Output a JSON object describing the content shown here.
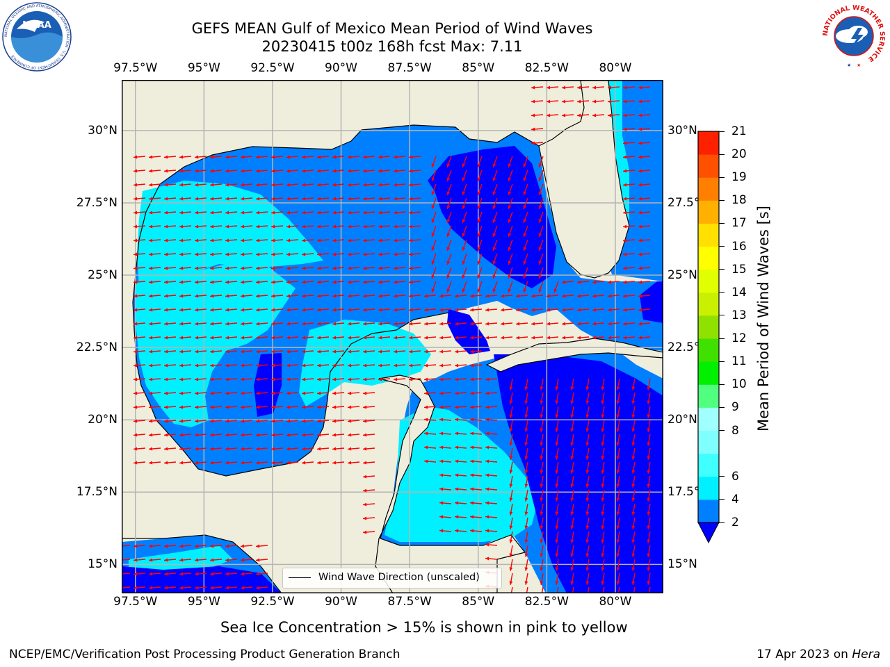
{
  "title": {
    "line1": "GEFS MEAN Gulf of Mexico Mean Period of Wind Waves",
    "line2": "20230415 t00z 168h fcst   Max: 7.11"
  },
  "logos": {
    "left": {
      "icon": "noaa-logo",
      "text": "NOAA",
      "ring_text": "NATIONAL OCEANIC AND ATMOSPHERIC ADMINISTRATION · U.S. DEPARTMENT OF COMMERCE"
    },
    "right": {
      "icon": "nws-logo",
      "ring_text": "NATIONAL WEATHER SERVICE"
    }
  },
  "map": {
    "lon_range": [
      -98.0,
      -78.25
    ],
    "lat_range": [
      14.0,
      31.75
    ],
    "lon_ticks": [
      "97.5°W",
      "95°W",
      "92.5°W",
      "90°W",
      "87.5°W",
      "85°W",
      "82.5°W",
      "80°W"
    ],
    "lon_tick_values": [
      -97.5,
      -95,
      -92.5,
      -90,
      -87.5,
      -85,
      -82.5,
      -80
    ],
    "lat_ticks_left": [
      "30°N",
      "27.5°N",
      "25°N",
      "22.5°N",
      "20°N",
      "17.5°N",
      "15°N"
    ],
    "lat_ticks_right": [
      "30°N",
      "27.5°",
      "25°N",
      "22.5°",
      "20°N",
      "17.5°",
      "15°N"
    ],
    "lat_tick_values": [
      30,
      27.5,
      25,
      22.5,
      20,
      17.5,
      15
    ],
    "colors": {
      "land": "#efeddc",
      "band_2_4": "#0080ff",
      "band_4_6": "#00f0ff",
      "band_lt_2": "#0000ff",
      "arrows": "#ff0000",
      "grid": "#b4b4b4"
    }
  },
  "legend": {
    "label": "Wind Wave Direction (unscaled)"
  },
  "colorbar": {
    "label": "Mean Period of Wind Waves [s]",
    "levels": [
      2,
      4,
      6,
      7,
      8,
      9,
      10,
      11,
      12,
      13,
      14,
      15,
      16,
      17,
      18,
      19,
      20,
      21
    ],
    "tick_labels": [
      "2",
      "4",
      "6",
      "8",
      "9",
      "10",
      "11",
      "12",
      "13",
      "14",
      "15",
      "16",
      "17",
      "18",
      "19",
      "20",
      "21"
    ],
    "colors": [
      "#0080ff",
      "#00f0ff",
      "#40ffff",
      "#80ffff",
      "#a0ffff",
      "#50ff80",
      "#00f000",
      "#40e000",
      "#90e000",
      "#c8f000",
      "#e0ff00",
      "#ffff00",
      "#ffe000",
      "#ffb000",
      "#ff8000",
      "#ff5000",
      "#ff2000"
    ],
    "underflow_color": "#0000ff"
  },
  "caption": "Sea Ice Concentration > 15% is shown in pink to yellow",
  "footer": {
    "left": "NCEP/EMC/Verification Post Processing Product Generation Branch",
    "date": "17 Apr 2023 on",
    "host": "Hera"
  }
}
